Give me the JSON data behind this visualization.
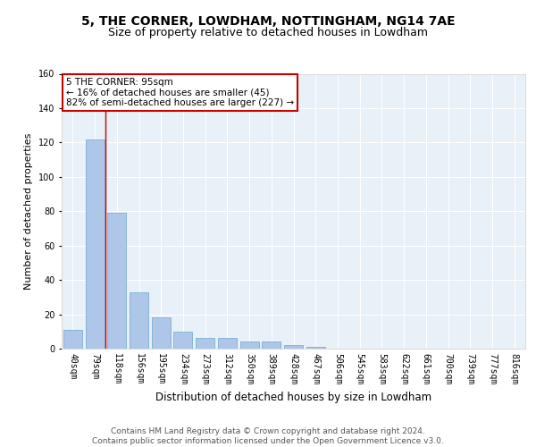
{
  "title1": "5, THE CORNER, LOWDHAM, NOTTINGHAM, NG14 7AE",
  "title2": "Size of property relative to detached houses in Lowdham",
  "xlabel": "Distribution of detached houses by size in Lowdham",
  "ylabel": "Number of detached properties",
  "categories": [
    "40sqm",
    "79sqm",
    "118sqm",
    "156sqm",
    "195sqm",
    "234sqm",
    "273sqm",
    "312sqm",
    "350sqm",
    "389sqm",
    "428sqm",
    "467sqm",
    "506sqm",
    "545sqm",
    "583sqm",
    "622sqm",
    "661sqm",
    "700sqm",
    "739sqm",
    "777sqm",
    "816sqm"
  ],
  "values": [
    11,
    122,
    79,
    33,
    18,
    10,
    6,
    6,
    4,
    4,
    2,
    1,
    0,
    0,
    0,
    0,
    0,
    0,
    0,
    0,
    0
  ],
  "bar_color": "#aec6e8",
  "bar_edge_color": "#7aafd4",
  "vline_x": 1.5,
  "vline_color": "#cc0000",
  "annotation_text": "5 THE CORNER: 95sqm\n← 16% of detached houses are smaller (45)\n82% of semi-detached houses are larger (227) →",
  "annotation_box_color": "#ffffff",
  "annotation_box_edge_color": "#cc0000",
  "ylim": [
    0,
    160
  ],
  "yticks": [
    0,
    20,
    40,
    60,
    80,
    100,
    120,
    140,
    160
  ],
  "footer_text": "Contains HM Land Registry data © Crown copyright and database right 2024.\nContains public sector information licensed under the Open Government Licence v3.0.",
  "plot_bg_color": "#e8f0f8",
  "title1_fontsize": 10,
  "title2_fontsize": 9,
  "xlabel_fontsize": 8.5,
  "ylabel_fontsize": 8,
  "tick_fontsize": 7,
  "annotation_fontsize": 7.5,
  "footer_fontsize": 6.5
}
